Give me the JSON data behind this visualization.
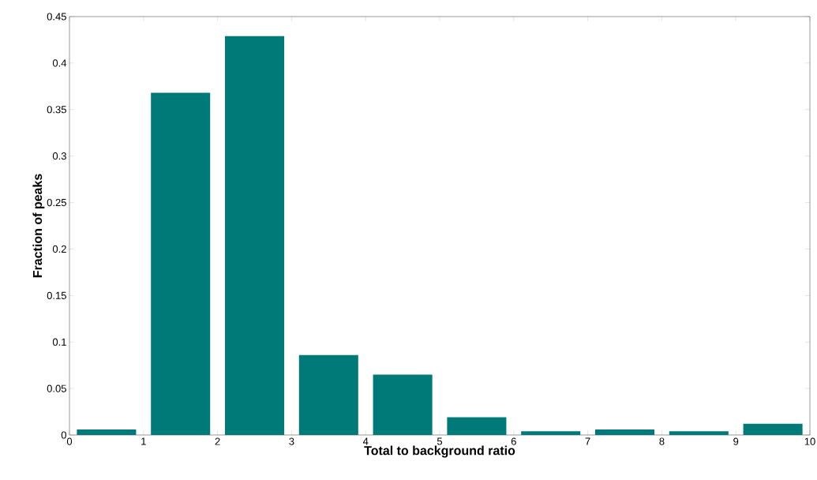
{
  "chart_data": {
    "type": "histogram",
    "xlabel": "Total to background ratio",
    "ylabel": "Fraction of peaks",
    "bins": [
      0,
      1,
      2,
      3,
      4,
      5,
      6,
      7,
      8,
      9,
      10
    ],
    "values": [
      0.006,
      0.368,
      0.429,
      0.086,
      0.065,
      0.019,
      0.004,
      0.006,
      0.004,
      0.012
    ],
    "color": "#007a78",
    "xlim": [
      0,
      10
    ],
    "xticks": [
      0,
      1,
      2,
      3,
      4,
      5,
      6,
      7,
      8,
      9,
      10
    ],
    "ylim": [
      0,
      0.45
    ],
    "yticks": [
      0,
      0.05,
      0.1,
      0.15,
      0.2,
      0.25,
      0.3,
      0.35,
      0.4,
      0.45
    ],
    "grid": false
  }
}
